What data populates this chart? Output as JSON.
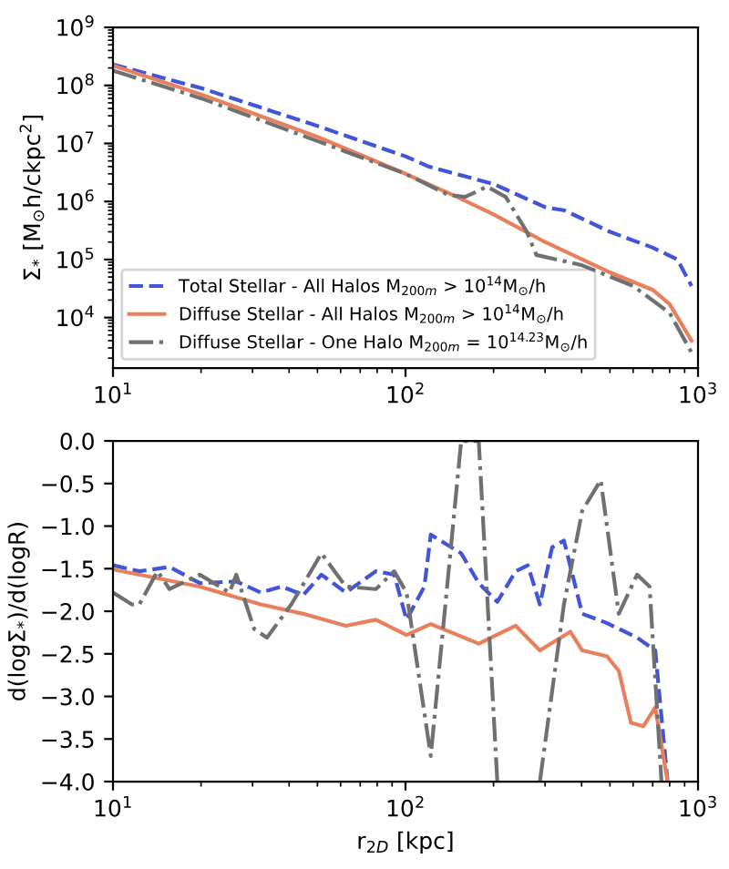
{
  "chart_data": [
    {
      "type": "line",
      "ylabel": "Σ$_{*}$ [M$_{⊙}$h/ckpc$^{2}$]",
      "log": "xy",
      "legend": "bottom left",
      "grid": false,
      "xlim": [
        10,
        1000
      ],
      "xticks": [
        {
          "value": 10,
          "label": "10$^{1}$"
        },
        {
          "value": 100,
          "label": "10$^{2}$"
        },
        {
          "value": 1000,
          "label": "10$^{3}$"
        }
      ],
      "ylim": [
        1350,
        1000000000
      ],
      "yticks": [
        {
          "value": 10000,
          "label": "10$^{4}$"
        },
        {
          "value": 100000,
          "label": "10$^{5}$"
        },
        {
          "value": 1000000,
          "label": "10$^{6}$"
        },
        {
          "value": 10000000,
          "label": "10$^{7}$"
        },
        {
          "value": 100000000,
          "label": "10$^{8}$"
        },
        {
          "value": 1000000000,
          "label": "10$^{9}$"
        }
      ],
      "series": [
        {
          "name": "Total Stellar - All Halos M$_{200m}$ > 10$^{14}$M$_{⊙}$/h",
          "color": "#4055d8",
          "line_style": "dashed",
          "x": [
            10,
            20,
            50,
            100,
            120,
            200,
            300,
            350,
            500,
            700,
            850,
            950
          ],
          "values": [
            230000000,
            90000000,
            20000000,
            6000000,
            4000000,
            2000000,
            800000,
            700000,
            300000,
            160000,
            100000,
            35000
          ]
        },
        {
          "name": "Diffuse Stellar - All Halos M$_{200m}$ > 10$^{14}$M$_{⊙}$/h",
          "color": "#e8805e",
          "line_style": "solid",
          "x": [
            10,
            20,
            50,
            100,
            150,
            200,
            300,
            500,
            700,
            800,
            950
          ],
          "values": [
            220000000,
            70000000,
            13000000,
            3000000,
            1200000,
            600000,
            200000,
            60000,
            30000,
            17000,
            4000
          ]
        },
        {
          "name": "Diffuse Stellar - One Halo M$_{200m}$ = 10$^{14.23}$M$_{⊙}$/h",
          "color": "#707070",
          "line_style": "dashdot",
          "x": [
            10,
            20,
            50,
            100,
            140,
            160,
            190,
            220,
            260,
            280,
            400,
            600,
            800,
            950
          ],
          "values": [
            180000000,
            60000000,
            11000000,
            3000000,
            1300000,
            1200000,
            1800000,
            1200000,
            300000,
            120000,
            80000,
            35000,
            12000,
            2500
          ]
        }
      ]
    },
    {
      "type": "line",
      "xlabel": "r$_{2D}$ [kpc]",
      "ylabel": "d(logΣ$_{*}$)/d(logR)",
      "log": "x",
      "legend": false,
      "grid": false,
      "xlim": [
        10,
        1000
      ],
      "xticks": [
        {
          "value": 10,
          "label": "10$^{1}$"
        },
        {
          "value": 100,
          "label": "10$^{2}$"
        },
        {
          "value": 1000,
          "label": "10$^{3}$"
        }
      ],
      "ylim": [
        -4,
        0
      ],
      "yticks": [
        {
          "value": -4,
          "label": "−4.0"
        },
        {
          "value": -3.5,
          "label": "−3.5"
        },
        {
          "value": -3,
          "label": "−3.0"
        },
        {
          "value": -2.5,
          "label": "−2.5"
        },
        {
          "value": -2,
          "label": "−2.0"
        },
        {
          "value": -1.5,
          "label": "−1.5"
        },
        {
          "value": -1,
          "label": "−1.0"
        },
        {
          "value": -0.5,
          "label": "−0.5"
        },
        {
          "value": 0,
          "label": "0.0"
        }
      ],
      "series": [
        {
          "color": "#4055d8",
          "line_style": "dashed",
          "x": [
            10,
            12.3,
            15.6,
            19.8,
            26.4,
            32,
            37.8,
            44.7,
            51.6,
            62.5,
            79.2,
            91.5,
            100.8,
            116,
            122,
            155,
            178,
            206,
            238,
            262,
            288,
            317,
            348,
            402,
            489,
            619,
            714,
            787
          ],
          "values": [
            -1.46,
            -1.53,
            -1.48,
            -1.67,
            -1.65,
            -1.78,
            -1.71,
            -1.81,
            -1.57,
            -1.78,
            -1.53,
            -1.57,
            -2.1,
            -1.71,
            -1.1,
            -1.32,
            -1.67,
            -1.89,
            -1.53,
            -1.46,
            -1.92,
            -1.25,
            -1.17,
            -2.03,
            -2.14,
            -2.31,
            -2.46,
            -4.0
          ]
        },
        {
          "color": "#e8805e",
          "line_style": "solid",
          "x": [
            10,
            19.8,
            32,
            44.7,
            62.5,
            79.2,
            100.8,
            122,
            178,
            238,
            288,
            366,
            402,
            489,
            536,
            590,
            650,
            714,
            787
          ],
          "values": [
            -1.51,
            -1.71,
            -1.92,
            -2.03,
            -2.17,
            -2.1,
            -2.28,
            -2.15,
            -2.38,
            -2.17,
            -2.46,
            -2.24,
            -2.46,
            -2.53,
            -2.7,
            -3.31,
            -3.35,
            -3.13,
            -4.0
          ]
        },
        {
          "color": "#707070",
          "line_style": "dashdot",
          "x": [
            10,
            11.6,
            12.3,
            14.2,
            15.6,
            19.8,
            25,
            26.4,
            30.4,
            33.6,
            40.7,
            51.6,
            62.5,
            79.2,
            91.5,
            100.8,
            122,
            155,
            178,
            206,
            null,
            288,
            348,
            402,
            465,
            536,
            619,
            683,
            750
          ],
          "values": [
            -1.78,
            -1.92,
            -1.92,
            -1.53,
            -1.74,
            -1.57,
            -1.78,
            -1.57,
            -2.21,
            -2.31,
            -1.92,
            -1.32,
            -1.71,
            -1.74,
            -1.53,
            -1.78,
            -3.7,
            0,
            0,
            -4.0,
            null,
            -4.0,
            -1.92,
            -0.82,
            -0.46,
            -2.03,
            -1.57,
            -1.71,
            -4.0
          ]
        }
      ]
    }
  ]
}
